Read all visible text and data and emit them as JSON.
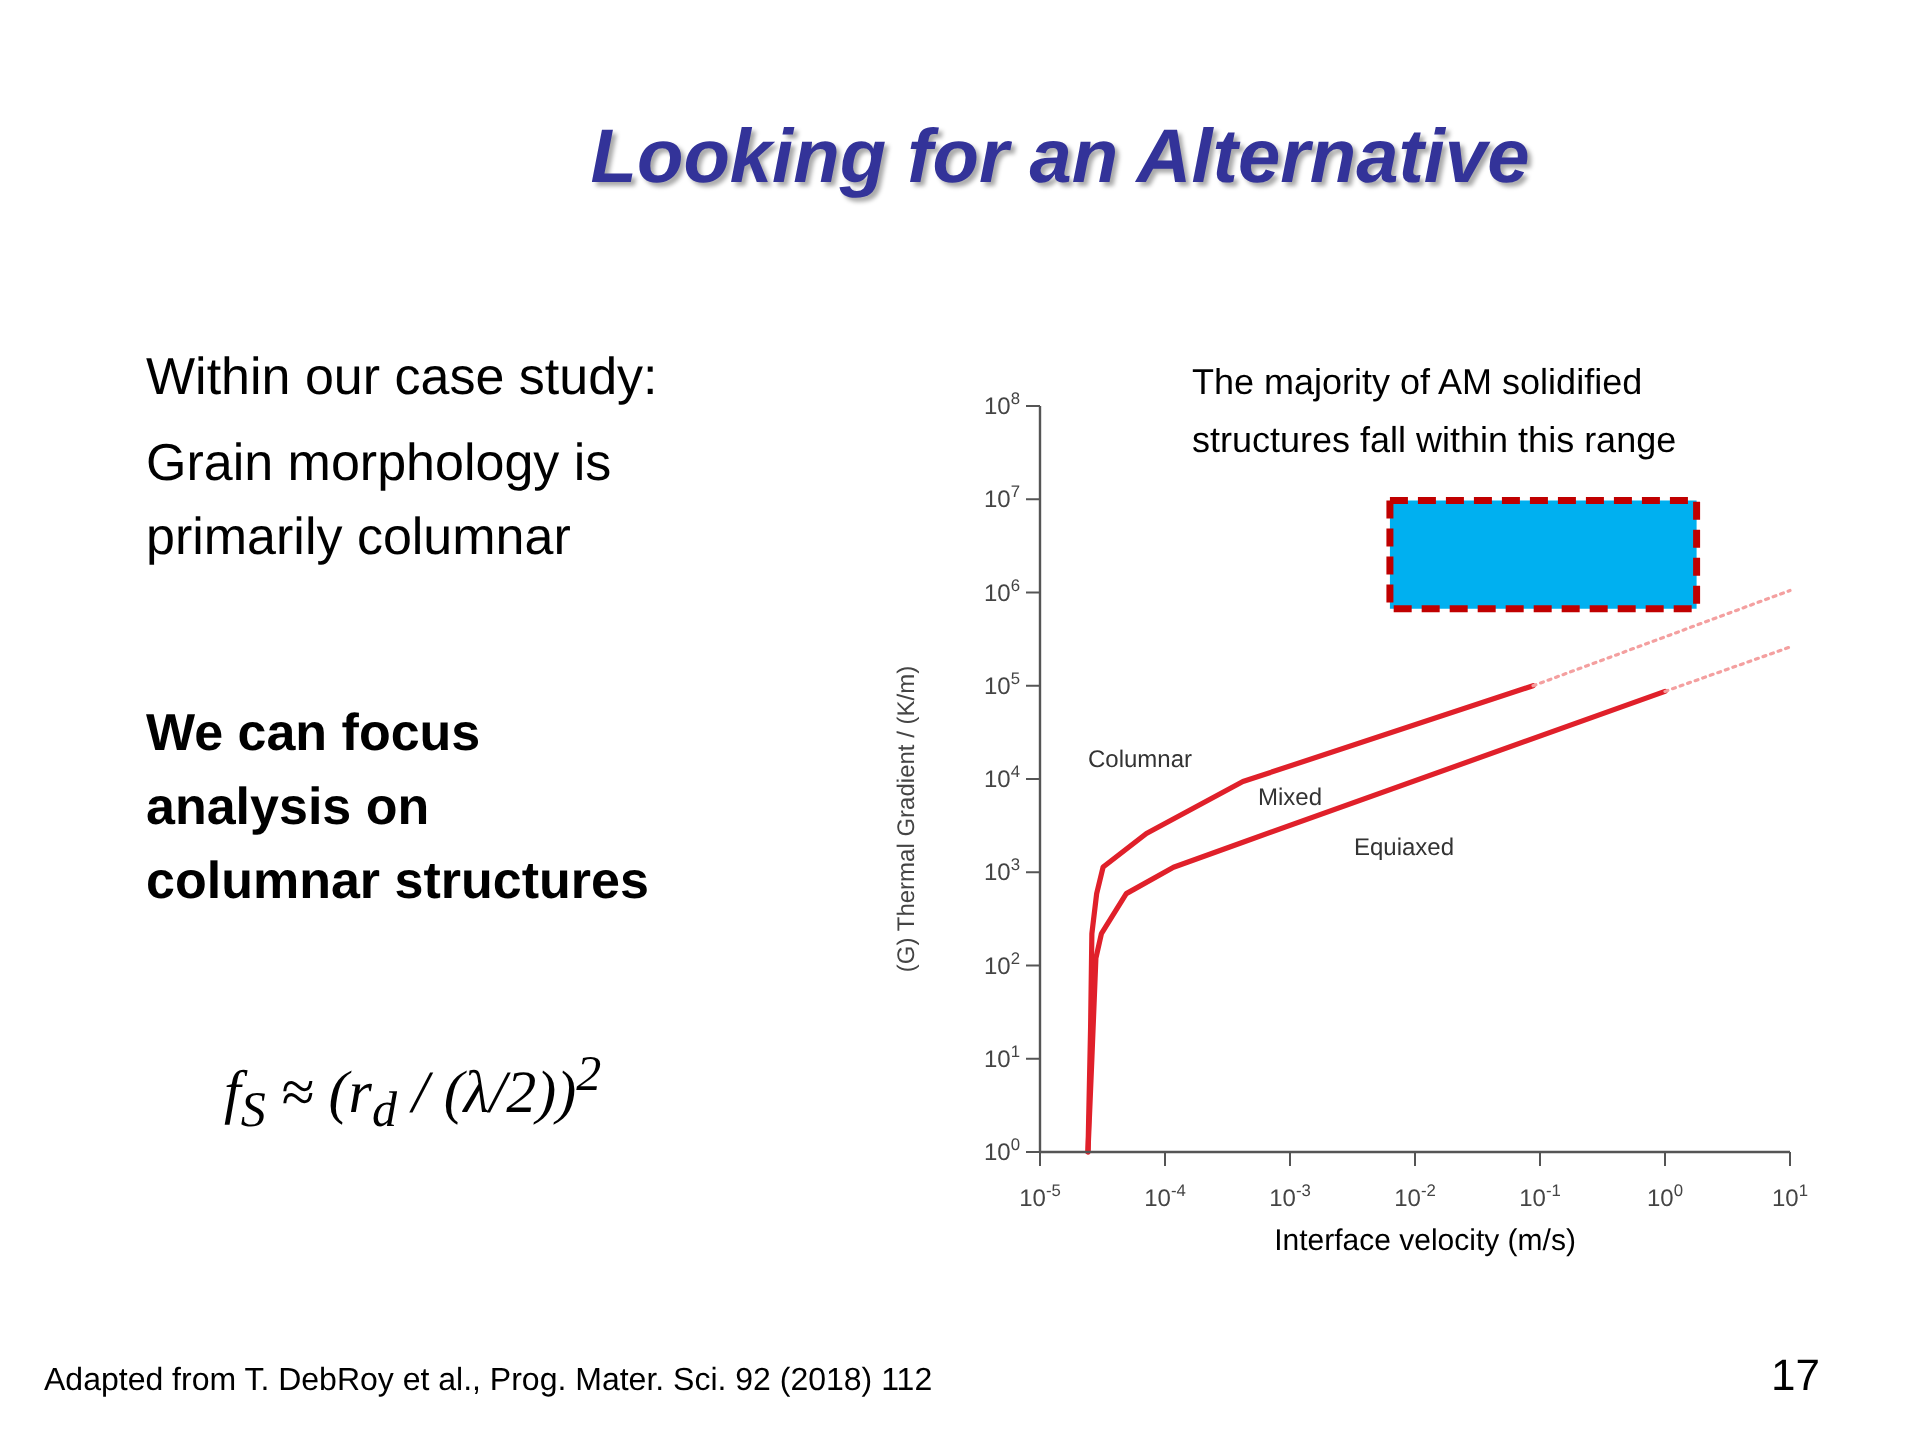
{
  "chart_data": {
    "type": "line",
    "title": "Looking for an Alternative",
    "xlabel": "Interface velocity (m/s)",
    "ylabel": "(G) Thermal Gradient / (K/m)",
    "log": "xy",
    "xlim": [
      1e-05,
      10
    ],
    "ylim": [
      1,
      100000000
    ],
    "xticks": [
      {
        "value": 1e-05,
        "label": "10$^{-5}$"
      },
      {
        "value": 0.0001,
        "label": "10$^{-4}$"
      },
      {
        "value": 0.001,
        "label": "10$^{-3}$"
      },
      {
        "value": 0.01,
        "label": "10$^{-2}$"
      },
      {
        "value": 0.1,
        "label": "10$^{-1}$"
      },
      {
        "value": 1,
        "label": "10$^{0}$"
      },
      {
        "value": 10,
        "label": "10$^{1}$"
      }
    ],
    "yticks": [
      {
        "value": 1,
        "label": "10$^{0}$"
      },
      {
        "value": 10,
        "label": "10$^{1}$"
      },
      {
        "value": 100,
        "label": "10$^{2}$"
      },
      {
        "value": 1000,
        "label": "10$^{3}$"
      },
      {
        "value": 10000,
        "label": "10$^{4}$"
      },
      {
        "value": 100000,
        "label": "10$^{5}$"
      },
      {
        "value": 1000000,
        "label": "10$^{6}$"
      },
      {
        "value": 10000000,
        "label": "10$^{7}$"
      },
      {
        "value": 100000000,
        "label": "10$^{8}$"
      }
    ],
    "grid": false,
    "series": [
      {
        "color": "#c00000",
        "line_style": "dashed",
        "x": [
          0.0063,
          1.79
        ],
        "values": [
          9700000,
          9700000
        ],
        "lower": [
          670000,
          670000
        ],
        "upper": [
          9700000,
          9700000
        ]
      },
      {
        "color": "#e0202a",
        "line_style": "solid",
        "x": [
          2.42e-05,
          2.54e-05,
          2.6e-05,
          2.84e-05,
          3.2e-05,
          7.1e-05,
          0.00042,
          0.088
        ],
        "values": [
          1,
          22,
          220,
          590,
          1140,
          2600,
          9400,
          100000
        ]
      },
      {
        "color": "#f4a0a0",
        "line_style": "dotted",
        "x": [
          0.088,
          10
        ],
        "values": [
          100000,
          1050000
        ]
      },
      {
        "color": "#e0202a",
        "line_style": "solid",
        "x": [
          2.42e-05,
          2.6e-05,
          2.8e-05,
          3.1e-05,
          4.9e-05,
          0.000117,
          0.00042,
          1
        ],
        "values": [
          1,
          10,
          120,
          220,
          590,
          1130,
          2100,
          87000
        ]
      },
      {
        "color": "#f4a0a0",
        "line_style": "dotted",
        "x": [
          1,
          10
        ],
        "values": [
          87000,
          260000
        ]
      }
    ],
    "annotations": [
      "Within our case study:",
      "Grain morphology is\nprimarily columnar",
      "We can focus\nanalysis on\ncolumnar structures",
      "f$_{S}$ ≈ (r$_{d}$ / (λ/2))$^{2}$",
      "The majority of AM solidified\nstructures fall within this range",
      "Columnar",
      "Mixed",
      "Equiaxed",
      "Adapted from T. DebRoy et al., Prog. Mater. Sci. 92 (2018) 112",
      "17"
    ]
  }
}
